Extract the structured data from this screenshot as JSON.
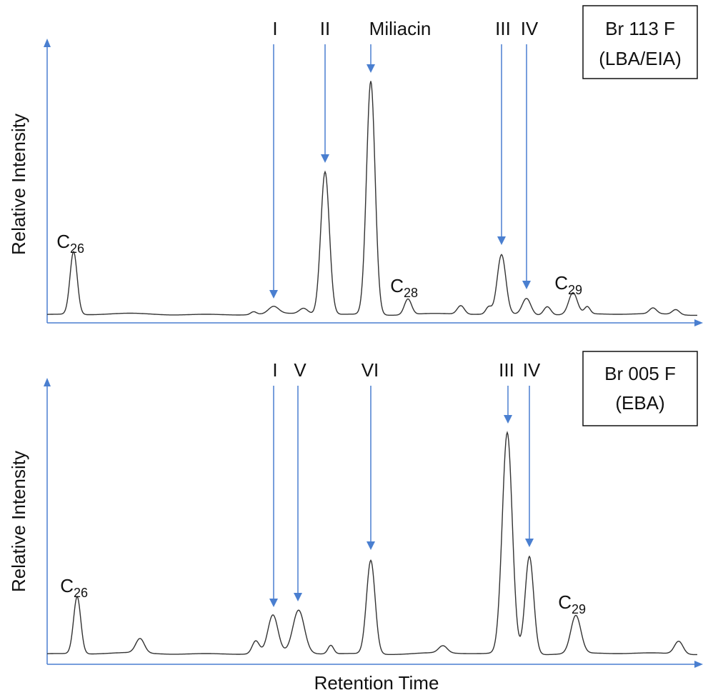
{
  "panels": [
    {
      "box": [
        "Br 113 F",
        "(LBA/EIA)"
      ],
      "y_axis_label": "Relative Intensity",
      "peak_labels": [
        "I",
        "II",
        "Miliacin",
        "III",
        "IV"
      ],
      "compound_labels": [
        {
          "base": "C",
          "sub": "26"
        },
        {
          "base": "C",
          "sub": "28"
        },
        {
          "base": "C",
          "sub": "29"
        }
      ]
    },
    {
      "box": [
        "Br 005 F",
        "(EBA)"
      ],
      "y_axis_label": "Relative Intensity",
      "peak_labels": [
        "I",
        "V",
        "VI",
        "III",
        "IV"
      ],
      "compound_labels": [
        {
          "base": "C",
          "sub": "26"
        },
        {
          "base": "C",
          "sub": "29"
        }
      ]
    }
  ],
  "x_axis_label": "Retention Time"
}
